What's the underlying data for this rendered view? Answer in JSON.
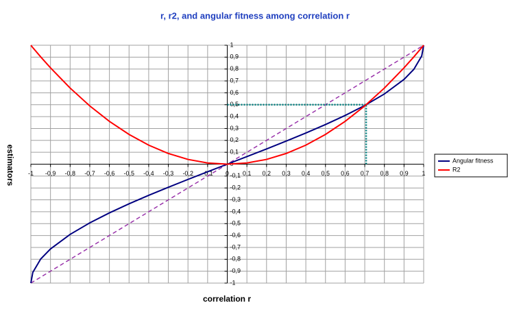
{
  "chart_data": {
    "type": "line",
    "title": "r, r2, and angular fitness among correlation r",
    "x_label": "correlation r",
    "y_label": "estimators",
    "x": [
      -1,
      -0.99,
      -0.95,
      -0.9,
      -0.8,
      -0.7,
      -0.6,
      -0.5,
      -0.4,
      -0.3,
      -0.2,
      -0.1,
      0,
      0.1,
      0.2,
      0.3,
      0.4,
      0.5,
      0.6,
      0.7,
      0.8,
      0.9,
      0.95,
      0.99,
      1
    ],
    "series": [
      {
        "name": "Angular fitness",
        "color": "#000080",
        "values": [
          -1,
          -0.9099,
          -0.7978,
          -0.7129,
          -0.5903,
          -0.4936,
          -0.4097,
          -0.3333,
          -0.262,
          -0.194,
          -0.1282,
          -0.0638,
          0,
          0.0638,
          0.1282,
          0.194,
          0.262,
          0.3333,
          0.4097,
          0.4936,
          0.5903,
          0.7129,
          0.7978,
          0.9099,
          1
        ]
      },
      {
        "name": "R2",
        "color": "#ff0000",
        "values": [
          1,
          0.9801,
          0.9025,
          0.81,
          0.64,
          0.49,
          0.36,
          0.25,
          0.16,
          0.09,
          0.04,
          0.01,
          0,
          0.01,
          0.04,
          0.09,
          0.16,
          0.25,
          0.36,
          0.49,
          0.64,
          0.81,
          0.9025,
          0.9801,
          1
        ]
      }
    ],
    "diagonal": {
      "color": "#9933aa",
      "x": [
        -1,
        1
      ],
      "values": [
        -1,
        1
      ]
    },
    "guide": {
      "color": "#008080",
      "x": 0.7071,
      "y": 0.5
    },
    "xlim": [
      -1,
      1
    ],
    "ylim": [
      -1,
      1
    ],
    "xticks": [
      {
        "value": -1,
        "label": "-1"
      },
      {
        "value": -0.9,
        "label": "-0,9"
      },
      {
        "value": -0.8,
        "label": "-0,8"
      },
      {
        "value": -0.7,
        "label": "-0,7"
      },
      {
        "value": -0.6,
        "label": "-0,6"
      },
      {
        "value": -0.5,
        "label": "-0,5"
      },
      {
        "value": -0.4,
        "label": "-0,4"
      },
      {
        "value": -0.3,
        "label": "-0,3"
      },
      {
        "value": -0.2,
        "label": "-0,2"
      },
      {
        "value": -0.1,
        "label": "-0,1"
      },
      0,
      {
        "value": 0.1,
        "label": "0,1"
      },
      {
        "value": 0.2,
        "label": "0,2"
      },
      {
        "value": 0.3,
        "label": "0,3"
      },
      {
        "value": 0.4,
        "label": "0,4"
      },
      {
        "value": 0.5,
        "label": "0,5"
      },
      {
        "value": 0.6,
        "label": "0,6"
      },
      {
        "value": 0.7,
        "label": "0,7"
      },
      {
        "value": 0.8,
        "label": "0,8"
      },
      {
        "value": 0.9,
        "label": "0,9"
      },
      1
    ],
    "yticks": [
      -1,
      {
        "value": -0.9,
        "label": "-0,9"
      },
      {
        "value": -0.8,
        "label": "-0,8"
      },
      {
        "value": -0.7,
        "label": "-0,7"
      },
      {
        "value": -0.6,
        "label": "-0,6"
      },
      {
        "value": -0.5,
        "label": "-0,5"
      },
      {
        "value": -0.4,
        "label": "-0,4"
      },
      {
        "value": -0.3,
        "label": "-0,3"
      },
      {
        "value": -0.2,
        "label": "-0,2"
      },
      {
        "value": -0.1,
        "label": "-0,1"
      },
      0,
      {
        "value": 0.1,
        "label": "0,1"
      },
      {
        "value": 0.2,
        "label": "0,2"
      },
      {
        "value": 0.3,
        "label": "0,3"
      },
      {
        "value": 0.4,
        "label": "0,4"
      },
      {
        "value": 0.5,
        "label": "0,5"
      },
      {
        "value": 0.6,
        "label": "0,6"
      },
      {
        "value": 0.7,
        "label": "0,7"
      },
      {
        "value": 0.8,
        "label": "0,8"
      },
      {
        "value": 0.9,
        "label": "0,9"
      },
      1
    ],
    "grid": true,
    "legend": "right"
  }
}
